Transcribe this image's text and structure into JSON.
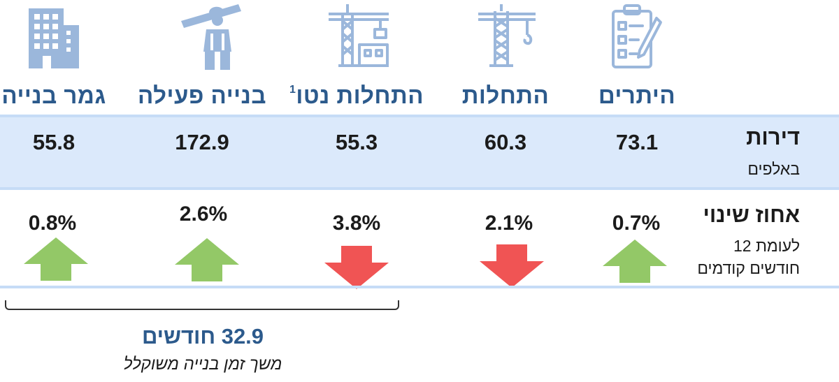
{
  "columns": [
    {
      "title": "היתרים",
      "value": "73.1",
      "change": "0.7%",
      "direction": "up",
      "icon": "clipboard-checklist-icon"
    },
    {
      "title": "התחלות",
      "value": "60.3",
      "change": "2.1%",
      "direction": "down",
      "icon": "tower-crane-icon"
    },
    {
      "title": "התחלות נטו",
      "footnote": "1",
      "value": "55.3",
      "change": "3.8%",
      "direction": "down",
      "icon": "crane-building-icon"
    },
    {
      "title": "בנייה פעילה",
      "value": "172.9",
      "change": "2.6%",
      "direction": "up",
      "icon": "construction-worker-icon"
    },
    {
      "title": "גמר בנייה",
      "value": "55.8",
      "change": "0.8%",
      "direction": "up",
      "icon": "office-building-icon"
    }
  ],
  "rows": {
    "dwellings": {
      "label": "דירות",
      "sublabel": "באלפים"
    },
    "change": {
      "label": "אחוז שינוי",
      "sublabel_1": "לעומת 12",
      "sublabel_2": "חודשים קודמים"
    }
  },
  "duration": {
    "value": "32.9 חודשים",
    "label": "משך זמן בנייה משוקלל"
  },
  "colors": {
    "accent": "#2c5a8c",
    "icon": "#9bb7db",
    "band": "#dbe9fb",
    "up": "#93c867",
    "down": "#f05454"
  }
}
